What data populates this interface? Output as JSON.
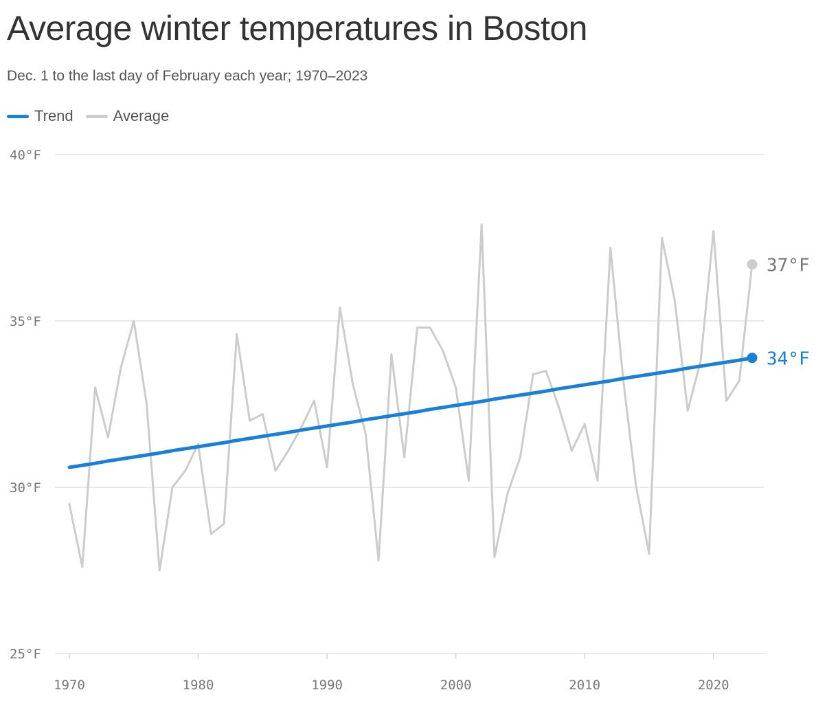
{
  "chart_data": {
    "type": "line",
    "title": "Average winter temperatures in Boston",
    "subtitle": "Dec. 1 to the last day of February each year; 1970–2023",
    "xlabel": "",
    "ylabel": "",
    "xlim": [
      1970,
      2023
    ],
    "ylim": [
      25,
      40
    ],
    "x_ticks": [
      1970,
      1980,
      1990,
      2000,
      2010,
      2020
    ],
    "x_tick_labels": [
      "1970",
      "1980",
      "1990",
      "2000",
      "2010",
      "2020"
    ],
    "y_ticks": [
      25,
      30,
      35,
      40
    ],
    "y_tick_labels": [
      "25°F",
      "30°F",
      "35°F",
      "40°F"
    ],
    "grid": true,
    "legend_placement": "top-left",
    "x": [
      1970,
      1971,
      1972,
      1973,
      1974,
      1975,
      1976,
      1977,
      1978,
      1979,
      1980,
      1981,
      1982,
      1983,
      1984,
      1985,
      1986,
      1987,
      1988,
      1989,
      1990,
      1991,
      1992,
      1993,
      1994,
      1995,
      1996,
      1997,
      1998,
      1999,
      2000,
      2001,
      2002,
      2003,
      2004,
      2005,
      2006,
      2007,
      2008,
      2009,
      2010,
      2011,
      2012,
      2013,
      2014,
      2015,
      2016,
      2017,
      2018,
      2019,
      2020,
      2021,
      2022,
      2023
    ],
    "series": [
      {
        "name": "Trend",
        "color": "#1a7fd6",
        "values": [
          30.6,
          30.66,
          30.72,
          30.79,
          30.85,
          30.91,
          30.97,
          31.03,
          31.1,
          31.16,
          31.22,
          31.28,
          31.34,
          31.41,
          31.47,
          31.53,
          31.59,
          31.65,
          31.72,
          31.78,
          31.84,
          31.9,
          31.96,
          32.03,
          32.09,
          32.15,
          32.21,
          32.27,
          32.34,
          32.4,
          32.46,
          32.52,
          32.58,
          32.65,
          32.71,
          32.77,
          32.83,
          32.89,
          32.96,
          33.02,
          33.08,
          33.14,
          33.2,
          33.27,
          33.33,
          33.39,
          33.45,
          33.51,
          33.58,
          33.64,
          33.7,
          33.76,
          33.82,
          33.89
        ],
        "end_label": "34°F"
      },
      {
        "name": "Average",
        "color": "#cccccc",
        "values": [
          29.5,
          27.6,
          33.0,
          31.5,
          33.6,
          35.0,
          32.5,
          27.5,
          30.0,
          30.5,
          31.3,
          28.6,
          28.9,
          34.6,
          32.0,
          32.2,
          30.5,
          31.1,
          31.8,
          32.6,
          30.6,
          35.4,
          33.1,
          31.6,
          27.8,
          34.0,
          30.9,
          34.8,
          34.8,
          34.1,
          33.0,
          30.2,
          37.9,
          27.9,
          29.8,
          30.9,
          33.4,
          33.5,
          32.4,
          31.1,
          31.9,
          30.2,
          37.2,
          33.2,
          30.0,
          28.0,
          37.5,
          35.6,
          32.3,
          33.8,
          37.7,
          32.6,
          33.2,
          36.7
        ],
        "end_label": "37°F"
      }
    ]
  }
}
